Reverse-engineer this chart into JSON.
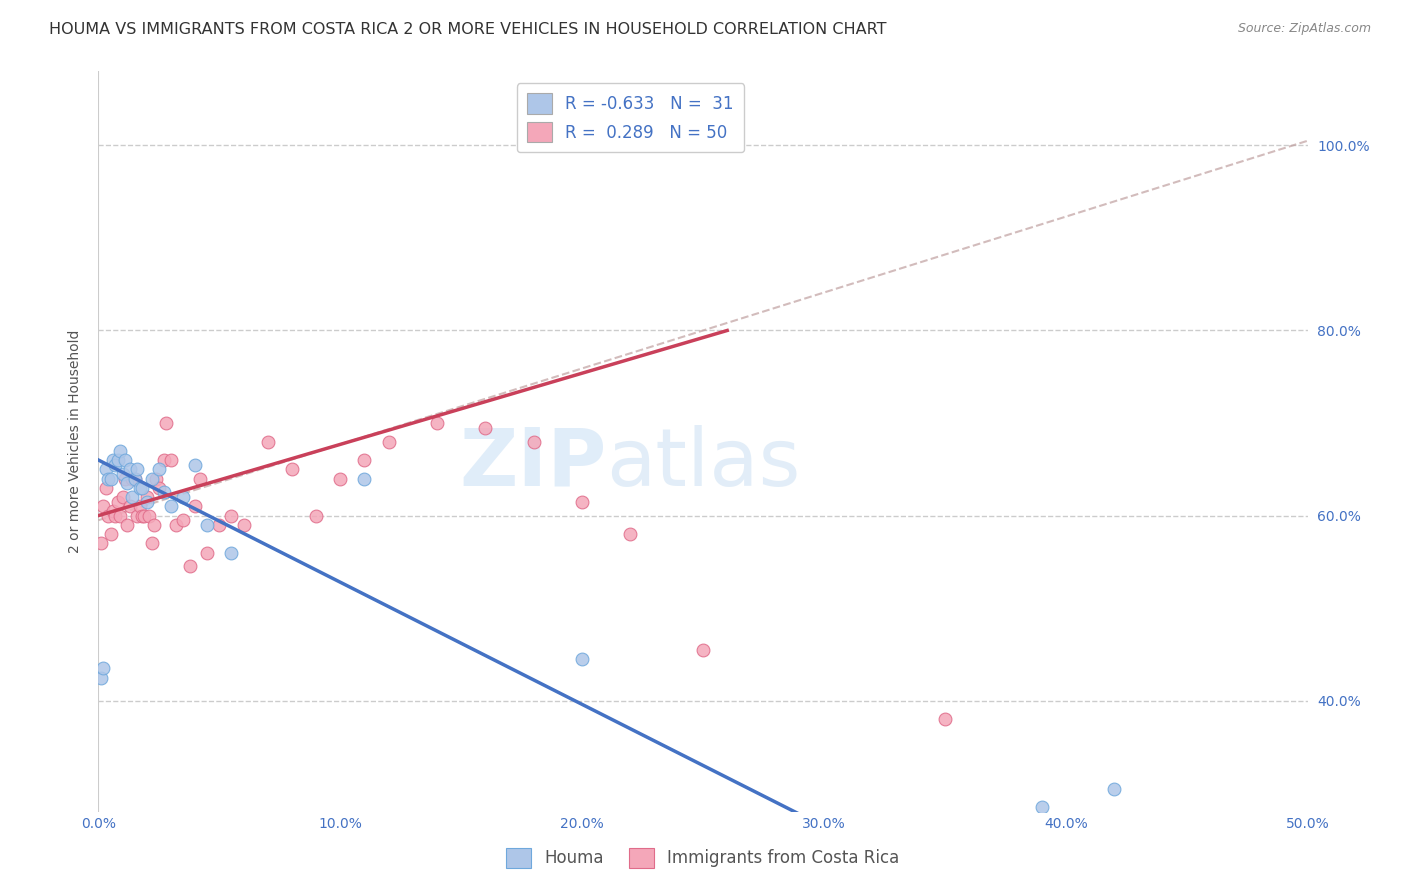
{
  "title": "HOUMA VS IMMIGRANTS FROM COSTA RICA 2 OR MORE VEHICLES IN HOUSEHOLD CORRELATION CHART",
  "source": "Source: ZipAtlas.com",
  "ylabel": "2 or more Vehicles in Household",
  "xlim": [
    0.0,
    0.5
  ],
  "ylim": [
    0.28,
    1.08
  ],
  "xticks": [
    0.0,
    0.1,
    0.2,
    0.3,
    0.4,
    0.5
  ],
  "xticklabels": [
    "0.0%",
    "10.0%",
    "20.0%",
    "30.0%",
    "40.0%",
    "50.0%"
  ],
  "yticks": [
    0.4,
    0.6,
    0.8,
    1.0
  ],
  "yticklabels": [
    "40.0%",
    "60.0%",
    "80.0%",
    "100.0%"
  ],
  "legend_entries": [
    {
      "label": "R = -0.633   N =  31",
      "color": "#aec6e8"
    },
    {
      "label": "R =  0.289   N = 50",
      "color": "#f4a7b9"
    }
  ],
  "watermark_zip": "ZIP",
  "watermark_atlas": "atlas",
  "houma_color": "#aec6e8",
  "houma_edgecolor": "#6fa8dc",
  "cr_color": "#f4a7b9",
  "cr_edgecolor": "#e06c8a",
  "houma_x": [
    0.001,
    0.002,
    0.003,
    0.004,
    0.005,
    0.006,
    0.007,
    0.008,
    0.009,
    0.01,
    0.011,
    0.012,
    0.013,
    0.014,
    0.015,
    0.016,
    0.017,
    0.018,
    0.02,
    0.022,
    0.025,
    0.027,
    0.03,
    0.035,
    0.04,
    0.045,
    0.055,
    0.11,
    0.2,
    0.39,
    0.42
  ],
  "houma_y": [
    0.425,
    0.435,
    0.65,
    0.64,
    0.64,
    0.66,
    0.655,
    0.66,
    0.67,
    0.645,
    0.66,
    0.635,
    0.65,
    0.62,
    0.64,
    0.65,
    0.63,
    0.63,
    0.615,
    0.64,
    0.65,
    0.625,
    0.61,
    0.62,
    0.655,
    0.59,
    0.56,
    0.64,
    0.445,
    0.285,
    0.305
  ],
  "cr_x": [
    0.001,
    0.002,
    0.003,
    0.004,
    0.005,
    0.006,
    0.007,
    0.008,
    0.009,
    0.01,
    0.011,
    0.012,
    0.013,
    0.014,
    0.015,
    0.016,
    0.017,
    0.018,
    0.019,
    0.02,
    0.021,
    0.022,
    0.023,
    0.024,
    0.025,
    0.027,
    0.028,
    0.03,
    0.032,
    0.035,
    0.038,
    0.04,
    0.042,
    0.045,
    0.05,
    0.055,
    0.06,
    0.07,
    0.08,
    0.09,
    0.1,
    0.11,
    0.12,
    0.14,
    0.16,
    0.18,
    0.2,
    0.22,
    0.25,
    0.35
  ],
  "cr_y": [
    0.57,
    0.61,
    0.63,
    0.6,
    0.58,
    0.605,
    0.6,
    0.615,
    0.6,
    0.62,
    0.64,
    0.59,
    0.61,
    0.64,
    0.64,
    0.6,
    0.61,
    0.6,
    0.6,
    0.62,
    0.6,
    0.57,
    0.59,
    0.64,
    0.63,
    0.66,
    0.7,
    0.66,
    0.59,
    0.595,
    0.545,
    0.61,
    0.64,
    0.56,
    0.59,
    0.6,
    0.59,
    0.68,
    0.65,
    0.6,
    0.64,
    0.66,
    0.68,
    0.7,
    0.695,
    0.68,
    0.615,
    0.58,
    0.455,
    0.38
  ],
  "blue_line_x": [
    0.0,
    0.5
  ],
  "blue_line_y": [
    0.66,
    0.0
  ],
  "pink_line_x": [
    0.0,
    0.26
  ],
  "pink_line_y": [
    0.6,
    0.8
  ],
  "gray_line_x": [
    0.0,
    0.5
  ],
  "gray_line_y": [
    0.595,
    1.005
  ],
  "background_color": "#ffffff",
  "grid_color": "#cccccc",
  "tick_color": "#4472c4",
  "title_fontsize": 11.5,
  "axis_label_fontsize": 10,
  "tick_fontsize": 10,
  "marker_size": 85
}
